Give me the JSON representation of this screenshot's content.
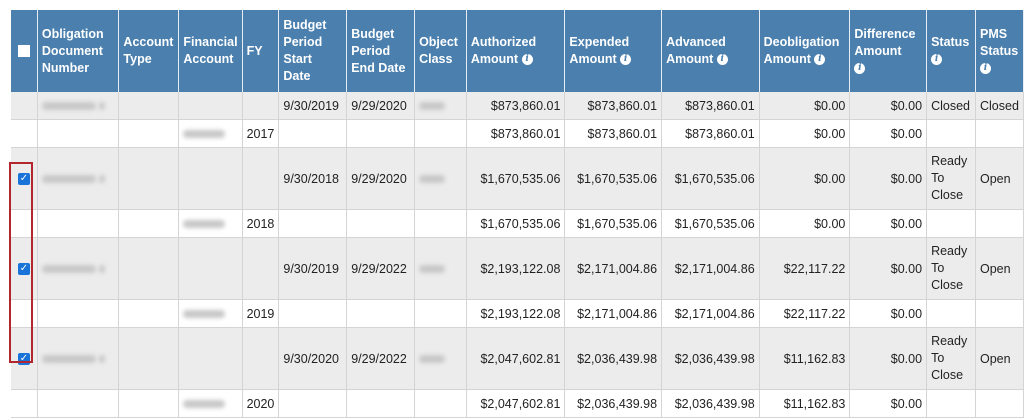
{
  "headers": {
    "obligation_document_number": "Obligation Document Number",
    "account_type": "Account Type",
    "financial_account": "Financial Account",
    "fy": "FY",
    "budget_period_start": "Budget Period Start Date",
    "budget_period_end": "Budget Period End Date",
    "object_class": "Object Class",
    "authorized_amount": "Authorized Amount",
    "expended_amount": "Expended Amount",
    "advanced_amount": "Advanced Amount",
    "deobligation_amount": "Deobligation Amount",
    "difference_amount": "Difference Amount",
    "status": "Status",
    "pms_status": "PMS Status"
  },
  "rows": [
    {
      "kind": "agg",
      "checked": false,
      "start": "9/30/2019",
      "end": "9/29/2020",
      "authorized": "$873,860.01",
      "expended": "$873,860.01",
      "advanced": "$873,860.01",
      "deobligation": "$0.00",
      "difference": "$0.00",
      "status": "Closed",
      "pms": "Closed"
    },
    {
      "kind": "fy",
      "fy": "2017",
      "authorized": "$873,860.01",
      "expended": "$873,860.01",
      "advanced": "$873,860.01",
      "deobligation": "$0.00",
      "difference": "$0.00"
    },
    {
      "kind": "agg",
      "checked": true,
      "start": "9/30/2018",
      "end": "9/29/2020",
      "authorized": "$1,670,535.06",
      "expended": "$1,670,535.06",
      "advanced": "$1,670,535.06",
      "deobligation": "$0.00",
      "difference": "$0.00",
      "status": "Ready To Close",
      "pms": "Open"
    },
    {
      "kind": "fy",
      "fy": "2018",
      "authorized": "$1,670,535.06",
      "expended": "$1,670,535.06",
      "advanced": "$1,670,535.06",
      "deobligation": "$0.00",
      "difference": "$0.00"
    },
    {
      "kind": "agg",
      "checked": true,
      "start": "9/30/2019",
      "end": "9/29/2022",
      "authorized": "$2,193,122.08",
      "expended": "$2,171,004.86",
      "advanced": "$2,171,004.86",
      "deobligation": "$22,117.22",
      "difference": "$0.00",
      "status": "Ready To Close",
      "pms": "Open"
    },
    {
      "kind": "fy",
      "fy": "2019",
      "authorized": "$2,193,122.08",
      "expended": "$2,171,004.86",
      "advanced": "$2,171,004.86",
      "deobligation": "$22,117.22",
      "difference": "$0.00"
    },
    {
      "kind": "agg",
      "checked": true,
      "start": "9/30/2020",
      "end": "9/29/2022",
      "authorized": "$2,047,602.81",
      "expended": "$2,036,439.98",
      "advanced": "$2,036,439.98",
      "deobligation": "$11,162.83",
      "difference": "$0.00",
      "status": "Ready To Close",
      "pms": "Open"
    },
    {
      "kind": "fy",
      "fy": "2020",
      "authorized": "$2,047,602.81",
      "expended": "$2,036,439.98",
      "advanced": "$2,036,439.98",
      "deobligation": "$11,162.83",
      "difference": "$0.00"
    }
  ]
}
